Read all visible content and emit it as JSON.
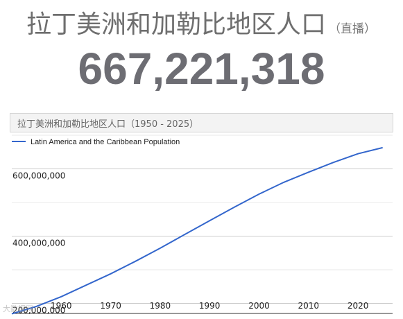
{
  "header": {
    "title": "拉丁美洲和加勒比地区人口",
    "live_label": "（直播）"
  },
  "counter": {
    "value": "667,221,318"
  },
  "chart_panel": {
    "title": "拉丁美洲和加勒比地区人口（1950 - 2025）"
  },
  "watermark": "大数据网",
  "chart_data": {
    "type": "line",
    "title": "拉丁美洲和加勒比地区人口（1950 - 2025）",
    "xlabel": "",
    "ylabel": "",
    "x": [
      1950,
      1955,
      1960,
      1965,
      1970,
      1975,
      1980,
      1985,
      1990,
      1995,
      2000,
      2005,
      2010,
      2015,
      2020,
      2025
    ],
    "series": [
      {
        "name": "Latin America and the Caribbean Population",
        "color": "#3366cc",
        "values": [
          169000000,
          191000000,
          220000000,
          254000000,
          288000000,
          325000000,
          364000000,
          405000000,
          446000000,
          486000000,
          525000000,
          560000000,
          590000000,
          619000000,
          645000000,
          663000000
        ]
      }
    ],
    "y_ticks": [
      "200,000,000",
      "400,000,000",
      "600,000,000"
    ],
    "y_tick_values": [
      200000000,
      400000000,
      600000000
    ],
    "x_ticks": [
      "1960",
      "1970",
      "1980",
      "1990",
      "2000",
      "2010",
      "2020"
    ],
    "x_tick_values": [
      1960,
      1970,
      1980,
      1990,
      2000,
      2010,
      2020
    ],
    "xlim": [
      1950,
      2027
    ],
    "ylim": [
      170000000,
      700000000
    ],
    "grid": true,
    "legend_position": "top-left"
  }
}
